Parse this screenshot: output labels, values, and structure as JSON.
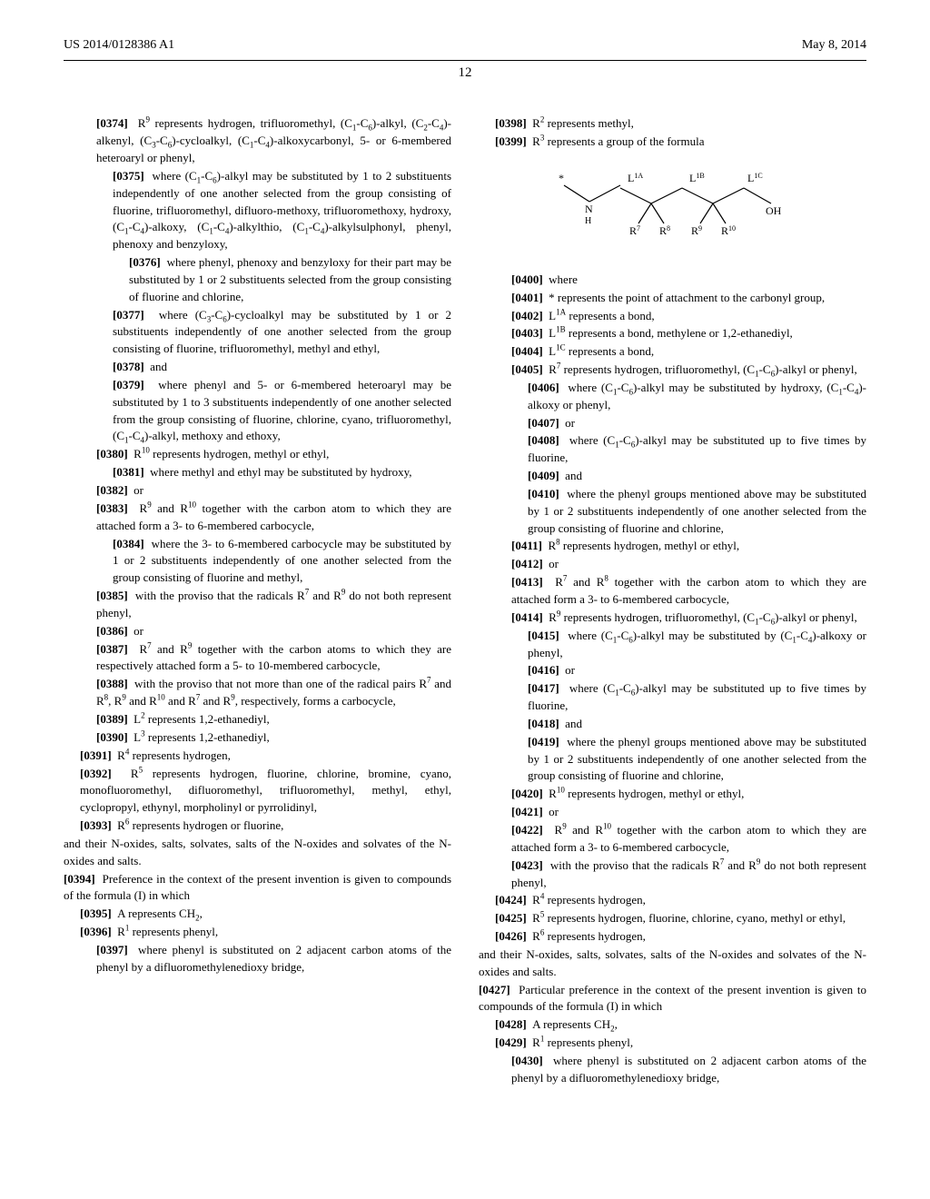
{
  "header": {
    "pub_number": "US 2014/0128386 A1",
    "date": "May 8, 2014",
    "page": "12"
  },
  "left_col": [
    {
      "n": "[0374]",
      "lvl": 1,
      "t": "R⁹ represents hydrogen, trifluoromethyl, (C₁-C₆)-alkyl, (C₂-C₄)-alkenyl, (C₃-C₆)-cycloalkyl, (C₁-C₄)-alkoxycarbonyl, 5- or 6-membered heteroaryl or phenyl,"
    },
    {
      "n": "[0375]",
      "lvl": 2,
      "t": "where (C₁-C₆)-alkyl may be substituted by 1 to 2 substituents independently of one another selected from the group consisting of fluorine, trifluoromethyl, difluoro-methoxy, trifluoromethoxy, hydroxy, (C₁-C₄)-alkoxy, (C₁-C₄)-alkylthio, (C₁-C₄)-alkylsulphonyl, phenyl, phenoxy and benzyloxy,"
    },
    {
      "n": "[0376]",
      "lvl": 3,
      "t": "where phenyl, phenoxy and benzyloxy for their part may be substituted by 1 or 2 substituents selected from the group consisting of fluorine and chlorine,"
    },
    {
      "n": "[0377]",
      "lvl": 2,
      "t": "where (C₃-C₆)-cycloalkyl may be substituted by 1 or 2 substituents independently of one another selected from the group consisting of fluorine, trifluoromethyl, methyl and ethyl,"
    },
    {
      "n": "[0378]",
      "lvl": 2,
      "t": "and"
    },
    {
      "n": "[0379]",
      "lvl": 2,
      "t": "where phenyl and 5- or 6-membered heteroaryl may be substituted by 1 to 3 substituents independently of one another selected from the group consisting of fluorine, chlorine, cyano, trifluoromethyl, (C₁-C₄)-alkyl, methoxy and ethoxy,"
    },
    {
      "n": "[0380]",
      "lvl": 1,
      "t": "R¹⁰ represents hydrogen, methyl or ethyl,"
    },
    {
      "n": "[0381]",
      "lvl": 2,
      "t": "where methyl and ethyl may be substituted by hydroxy,"
    },
    {
      "n": "[0382]",
      "lvl": 1,
      "t": "or"
    },
    {
      "n": "[0383]",
      "lvl": 1,
      "t": "R⁹ and R¹⁰ together with the carbon atom to which they are attached form a 3- to 6-membered carbocycle,"
    },
    {
      "n": "[0384]",
      "lvl": 2,
      "t": "where the 3- to 6-membered carbocycle may be substituted by 1 or 2 substituents independently of one another selected from the group consisting of fluorine and methyl,"
    },
    {
      "n": "[0385]",
      "lvl": 1,
      "t": "with the proviso that the radicals R⁷ and R⁹ do not both represent phenyl,"
    },
    {
      "n": "[0386]",
      "lvl": 1,
      "t": "or"
    },
    {
      "n": "[0387]",
      "lvl": 1,
      "t": "R⁷ and R⁹ together with the carbon atoms to which they are respectively attached form a 5- to 10-membered carbocycle,"
    },
    {
      "n": "[0388]",
      "lvl": 1,
      "t": "with the proviso that not more than one of the radical pairs R⁷ and R⁸, R⁹ and R¹⁰ and R⁷ and R⁹, respectively, forms a carbocycle,"
    },
    {
      "n": "[0389]",
      "lvl": 1,
      "t": "L² represents 1,2-ethanediyl,"
    },
    {
      "n": "[0390]",
      "lvl": 1,
      "t": "L³ represents 1,2-ethanediyl,"
    },
    {
      "n": "[0391]",
      "lvl": 0,
      "t": "R⁴ represents hydrogen,"
    },
    {
      "n": "[0392]",
      "lvl": 0,
      "t": "R⁵ represents hydrogen, fluorine, chlorine, bromine, cyano, monofluoromethyl, difluoromethyl, trifluoromethyl, methyl, ethyl, cyclopropyl, ethynyl, morpholinyl or pyrrolidinyl,"
    },
    {
      "n": "[0393]",
      "lvl": 0,
      "t": "R⁶ represents hydrogen or fluorine,"
    },
    {
      "n": "",
      "lvl": -1,
      "t": "and their N-oxides, salts, solvates, salts of the N-oxides and solvates of the N-oxides and salts."
    },
    {
      "n": "[0394]",
      "lvl": -1,
      "t": "Preference in the context of the present invention is given to compounds of the formula (I) in which"
    },
    {
      "n": "[0395]",
      "lvl": 0,
      "t": "A represents CH₂,"
    },
    {
      "n": "[0396]",
      "lvl": 0,
      "t": "R¹ represents phenyl,"
    },
    {
      "n": "[0397]",
      "lvl": 1,
      "t": "where phenyl is substituted on 2 adjacent carbon atoms of the phenyl by a difluoromethylenedioxy bridge,"
    }
  ],
  "right_col_top": [
    {
      "n": "[0398]",
      "lvl": 0,
      "t": "R² represents methyl,"
    },
    {
      "n": "[0399]",
      "lvl": 0,
      "t": "R³ represents a group of the formula"
    }
  ],
  "formula_labels": {
    "L1A": "L¹·ᴬ",
    "L1B": "L¹·ᴮ",
    "L1C": "L¹·ᶜ",
    "R7": "R⁷",
    "R8": "R⁸",
    "R9": "R⁹",
    "R10": "R¹⁰",
    "OH": "OH",
    "N": "N",
    "H": "H",
    "star": "*"
  },
  "right_col_bottom": [
    {
      "n": "[0400]",
      "lvl": 1,
      "t": "where"
    },
    {
      "n": "[0401]",
      "lvl": 1,
      "t": "* represents the point of attachment to the carbonyl group,"
    },
    {
      "n": "[0402]",
      "lvl": 1,
      "t": "L¹·ᴬ represents a bond,"
    },
    {
      "n": "[0403]",
      "lvl": 1,
      "t": "L¹·ᴮ represents a bond, methylene or 1,2-ethanediyl,"
    },
    {
      "n": "[0404]",
      "lvl": 1,
      "t": "L¹·ᶜ represents a bond,"
    },
    {
      "n": "[0405]",
      "lvl": 1,
      "t": "R⁷ represents hydrogen, trifluoromethyl, (C₁-C₆)-alkyl or phenyl,"
    },
    {
      "n": "[0406]",
      "lvl": 2,
      "t": "where (C₁-C₆)-alkyl may be substituted by hydroxy, (C₁-C₄)-alkoxy or phenyl,"
    },
    {
      "n": "[0407]",
      "lvl": 2,
      "t": "or"
    },
    {
      "n": "[0408]",
      "lvl": 2,
      "t": "where (C₁-C₆)-alkyl may be substituted up to five times by fluorine,"
    },
    {
      "n": "[0409]",
      "lvl": 2,
      "t": "and"
    },
    {
      "n": "[0410]",
      "lvl": 2,
      "t": "where the phenyl groups mentioned above may be substituted by 1 or 2 substituents independently of one another selected from the group consisting of fluorine and chlorine,"
    },
    {
      "n": "[0411]",
      "lvl": 1,
      "t": "R⁸ represents hydrogen, methyl or ethyl,"
    },
    {
      "n": "[0412]",
      "lvl": 1,
      "t": "or"
    },
    {
      "n": "[0413]",
      "lvl": 1,
      "t": "R⁷ and R⁸ together with the carbon atom to which they are attached form a 3- to 6-membered carbocycle,"
    },
    {
      "n": "[0414]",
      "lvl": 1,
      "t": "R⁹ represents hydrogen, trifluoromethyl, (C₁-C₆)-alkyl or phenyl,"
    },
    {
      "n": "[0415]",
      "lvl": 2,
      "t": "where (C₁-C₆)-alkyl may be substituted by (C₁-C₄)-alkoxy or phenyl,"
    },
    {
      "n": "[0416]",
      "lvl": 2,
      "t": "or"
    },
    {
      "n": "[0417]",
      "lvl": 2,
      "t": "where (C₁-C₆)-alkyl may be substituted up to five times by fluorine,"
    },
    {
      "n": "[0418]",
      "lvl": 2,
      "t": "and"
    },
    {
      "n": "[0419]",
      "lvl": 2,
      "t": "where the phenyl groups mentioned above may be substituted by 1 or 2 substituents independently of one another selected from the group consisting of fluorine and chlorine,"
    },
    {
      "n": "[0420]",
      "lvl": 1,
      "t": "R¹⁰ represents hydrogen, methyl or ethyl,"
    },
    {
      "n": "[0421]",
      "lvl": 1,
      "t": "or"
    },
    {
      "n": "[0422]",
      "lvl": 1,
      "t": "R⁹ and R¹⁰ together with the carbon atom to which they are attached form a 3- to 6-membered carbocycle,"
    },
    {
      "n": "[0423]",
      "lvl": 1,
      "t": "with the proviso that the radicals R⁷ and R⁹ do not both represent phenyl,"
    },
    {
      "n": "[0424]",
      "lvl": 0,
      "t": "R⁴ represents hydrogen,"
    },
    {
      "n": "[0425]",
      "lvl": 0,
      "t": "R⁵ represents hydrogen, fluorine, chlorine, cyano, methyl or ethyl,"
    },
    {
      "n": "[0426]",
      "lvl": 0,
      "t": "R⁶ represents hydrogen,"
    },
    {
      "n": "",
      "lvl": -1,
      "t": "and their N-oxides, salts, solvates, salts of the N-oxides and solvates of the N-oxides and salts."
    },
    {
      "n": "[0427]",
      "lvl": -1,
      "t": "Particular preference in the context of the present invention is given to compounds of the formula (I) in which"
    },
    {
      "n": "[0428]",
      "lvl": 0,
      "t": "A represents CH₂,"
    },
    {
      "n": "[0429]",
      "lvl": 0,
      "t": "R¹ represents phenyl,"
    },
    {
      "n": "[0430]",
      "lvl": 1,
      "t": "where phenyl is substituted on 2 adjacent carbon atoms of the phenyl by a difluoromethylenedioxy bridge,"
    }
  ]
}
